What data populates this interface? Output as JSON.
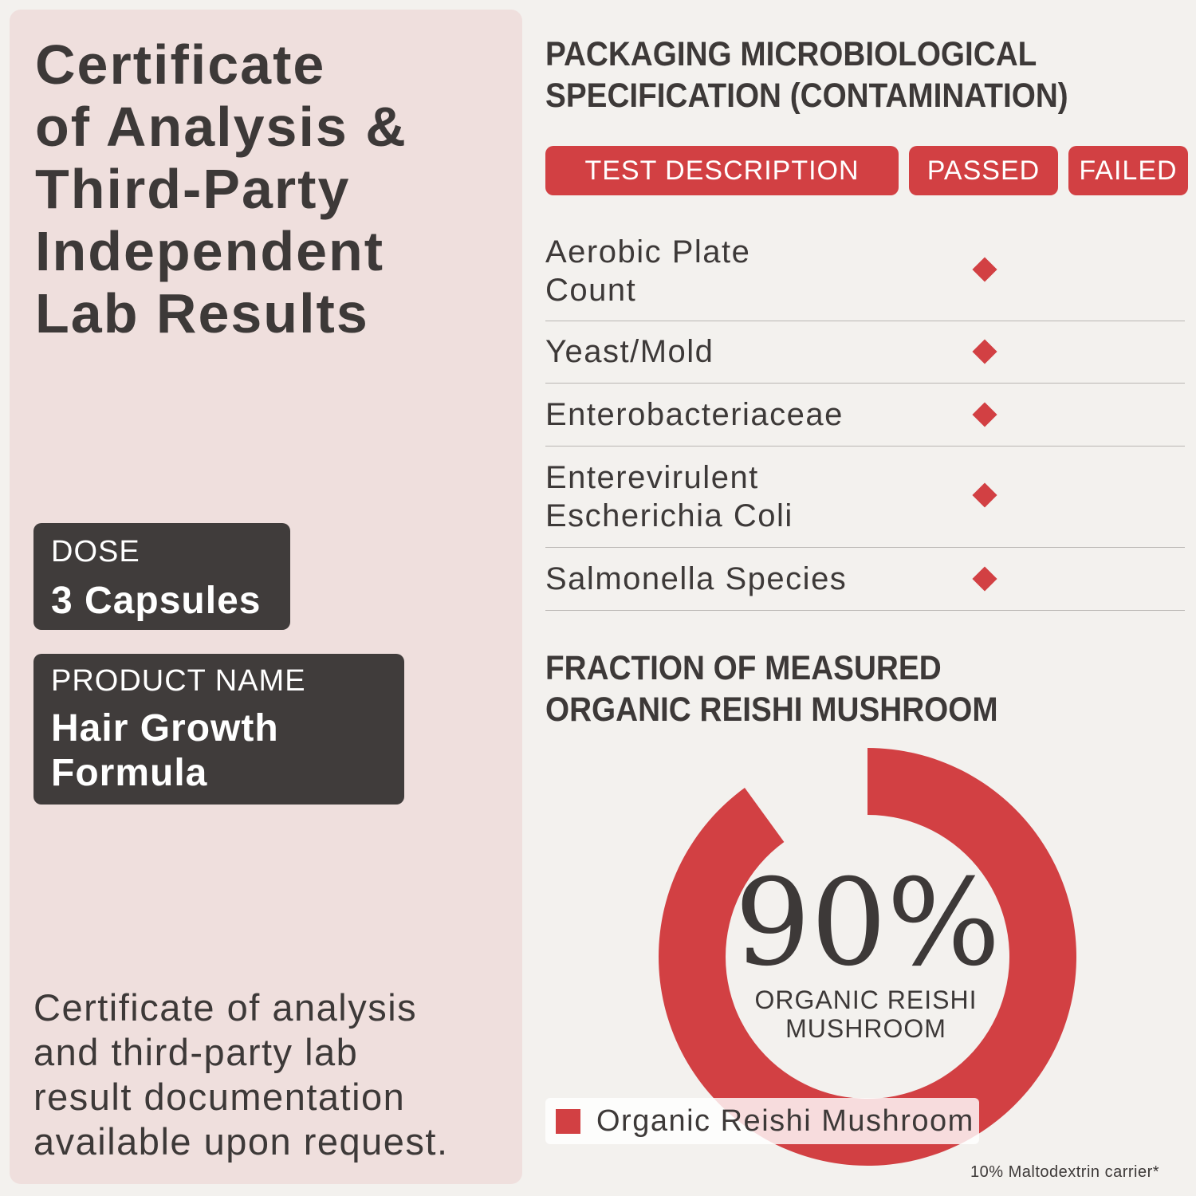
{
  "left_panel": {
    "title_lines": [
      "Certificate",
      "of Analysis &",
      "Third-Party",
      "Independent",
      "Lab Results"
    ],
    "dose": {
      "label": "DOSE",
      "value": "3 Capsules"
    },
    "product": {
      "label": "PRODUCT NAME",
      "value_lines": [
        "Hair Growth",
        "Formula"
      ]
    },
    "note_lines": [
      "Certificate of analysis",
      "and third-party lab",
      "result documentation",
      "available upon request."
    ]
  },
  "spec": {
    "heading_lines": [
      "PACKAGING MICROBIOLOGICAL",
      "SPECIFICATION (CONTAMINATION)"
    ],
    "columns": [
      "TEST DESCRIPTION",
      "PASSED",
      "FAILED"
    ],
    "rows": [
      {
        "test_lines": [
          "Aerobic Plate",
          "Count"
        ],
        "result": "passed"
      },
      {
        "test_lines": [
          "Yeast/Mold"
        ],
        "result": "passed"
      },
      {
        "test_lines": [
          "Enterobacteriaceae"
        ],
        "result": "passed"
      },
      {
        "test_lines": [
          "Enterevirulent",
          "Escherichia Coli"
        ],
        "result": "passed"
      },
      {
        "test_lines": [
          "Salmonella Species"
        ],
        "result": "passed"
      }
    ],
    "marker_icon": "diamond-icon"
  },
  "fraction": {
    "heading_lines": [
      "FRACTION OF MEASURED",
      "ORGANIC REISHI MUSHROOM"
    ],
    "center_value": "90%",
    "center_label_lines": [
      "ORGANIC REISHI",
      "MUSHROOM"
    ],
    "legend_label": "Organic Reishi Mushroom",
    "footnote": "10% Maltodextrin carrier*"
  },
  "chart_data": {
    "type": "pie",
    "style": "donut",
    "categories": [
      "Organic Reishi Mushroom",
      "Maltodextrin carrier"
    ],
    "values": [
      90,
      10
    ],
    "colors": [
      "#d24043",
      "none"
    ],
    "legend": "bottom-left"
  },
  "colors": {
    "accent": "#d24043",
    "dark": "#403c3b",
    "panel": "#efdfdd",
    "background": "#f3f1ee"
  }
}
